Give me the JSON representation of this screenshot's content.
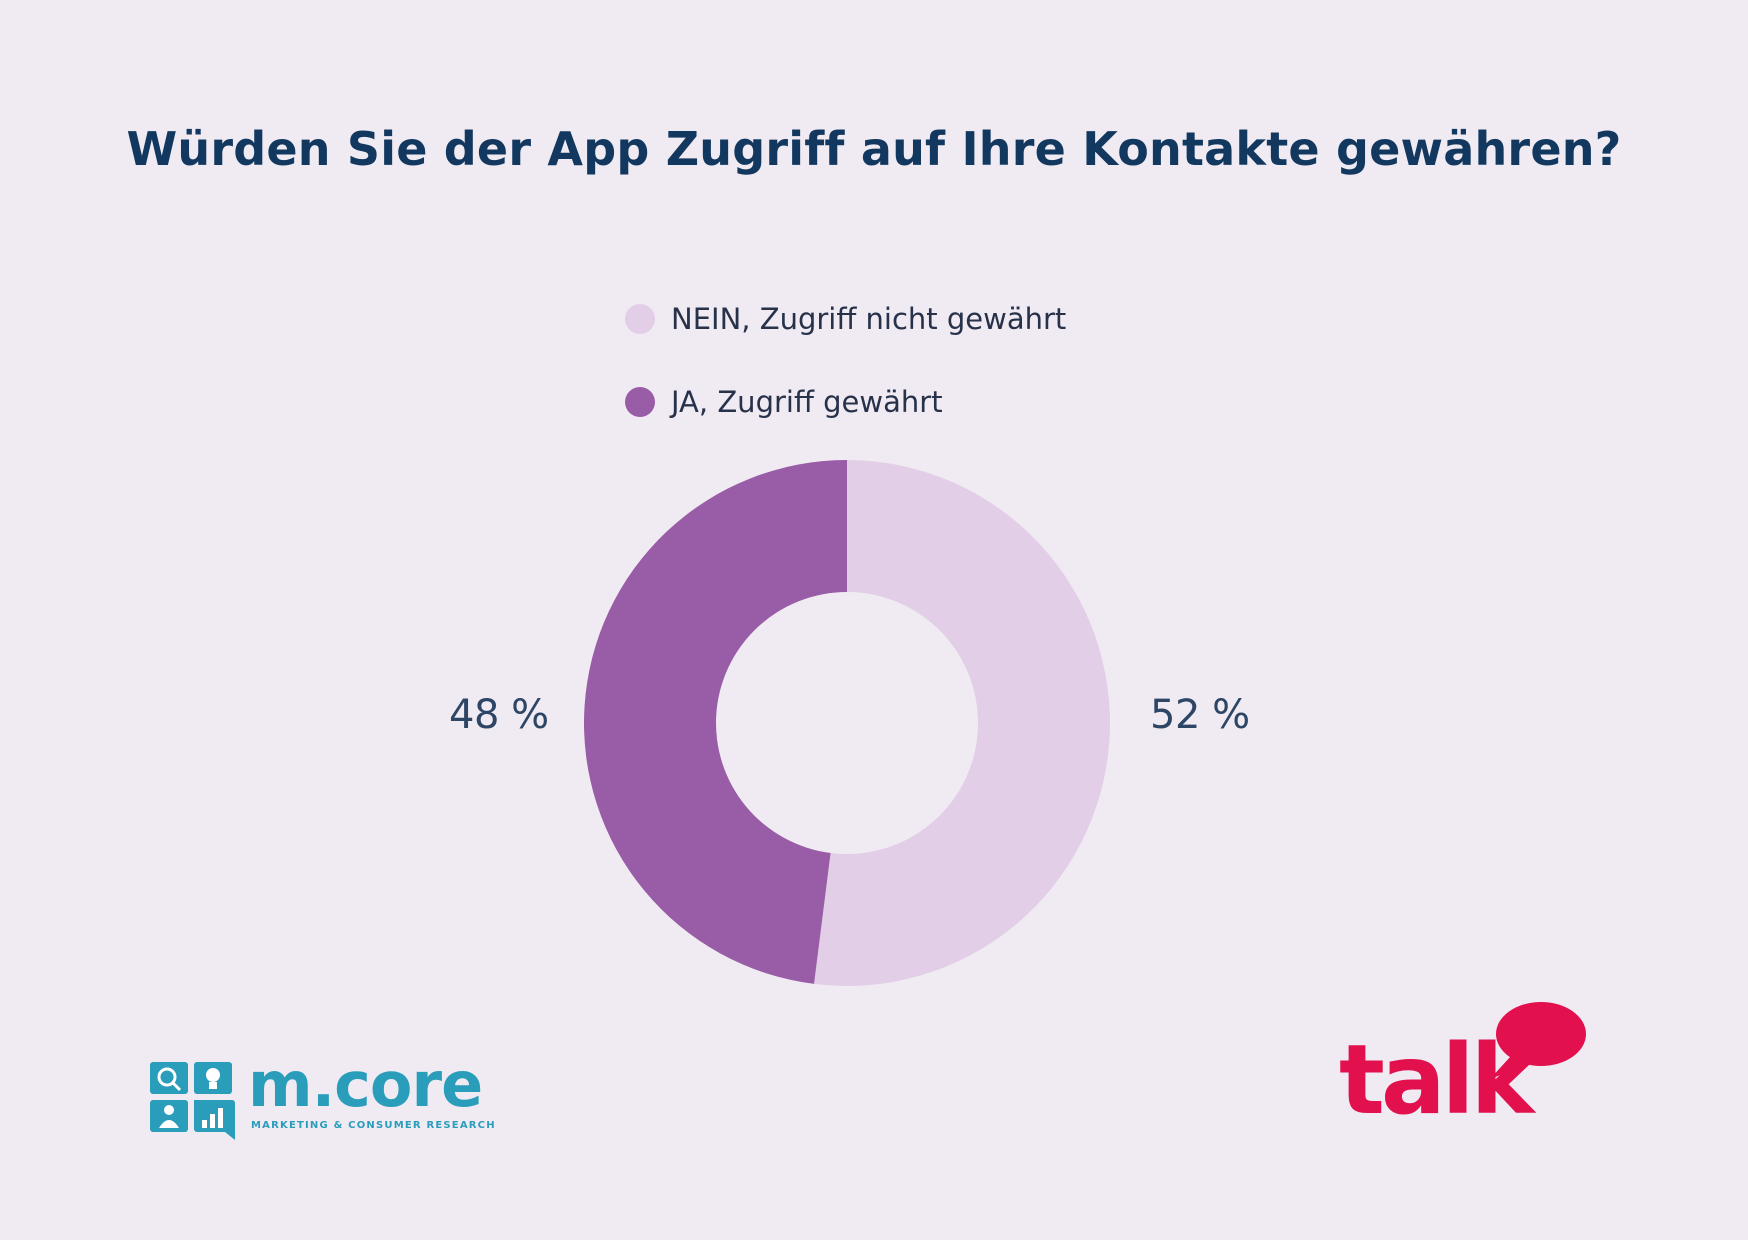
{
  "title": "Würden Sie der App Zugriff auf Ihre Kontakte gewähren?",
  "legend": [
    {
      "label": "NEIN, Zugriff nicht gewährt",
      "color": "#e2cfe7"
    },
    {
      "label": "JA, Zugriff gewährt",
      "color": "#995ca6"
    }
  ],
  "chart_data": {
    "type": "pie",
    "title": "Würden Sie der App Zugriff auf Ihre Kontakte gewähren?",
    "donut": true,
    "legend_position": "top",
    "series": [
      {
        "name": "NEIN, Zugriff nicht gewährt",
        "value": 52,
        "label": "52 %",
        "color": "#e2cfe7"
      },
      {
        "name": "JA, Zugriff gewährt",
        "value": 48,
        "label": "48 %",
        "color": "#995ca6"
      }
    ]
  },
  "logos": {
    "left": {
      "name": "m.core",
      "subtitle": "MARKETING & CONSUMER RESEARCH",
      "color": "#2a9dbb"
    },
    "right": {
      "name": "talk",
      "color": "#e2104d"
    }
  }
}
